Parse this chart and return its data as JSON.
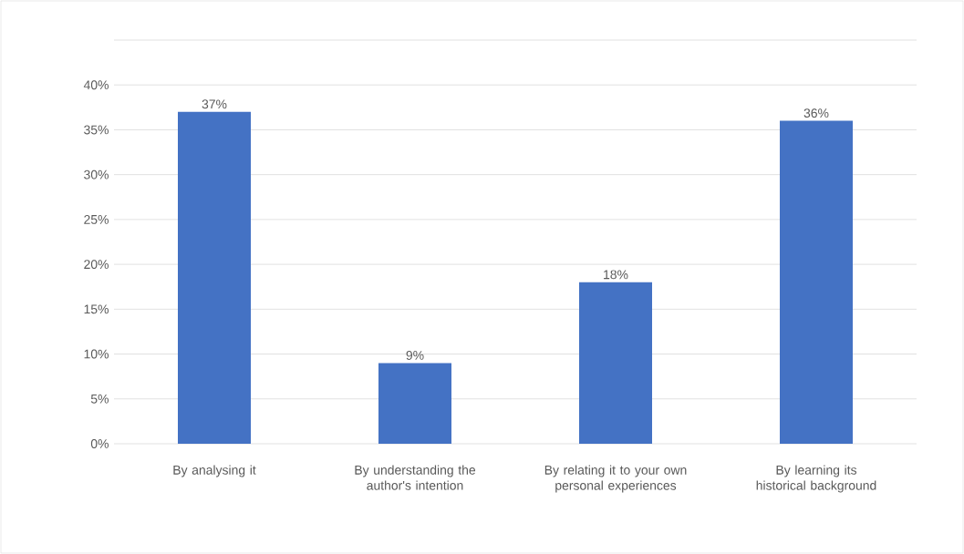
{
  "chart_data": {
    "type": "bar",
    "categories": [
      "By analysing it",
      "By understanding the author's intention",
      "By relating it to your own personal experiences",
      "By learning its historical background"
    ],
    "values": [
      37,
      9,
      18,
      36
    ],
    "value_labels": [
      "37%",
      "9%",
      "18%",
      "36%"
    ],
    "color": "#4472c4",
    "ylim": [
      0,
      45
    ],
    "yticks": [
      {
        "value": 0,
        "label": "0%"
      },
      {
        "value": 5,
        "label": "5%"
      },
      {
        "value": 10,
        "label": "10%"
      },
      {
        "value": 15,
        "label": "15%"
      },
      {
        "value": 20,
        "label": "20%"
      },
      {
        "value": 25,
        "label": "25%"
      },
      {
        "value": 30,
        "label": "30%"
      },
      {
        "value": 35,
        "label": "35%"
      },
      {
        "value": 40,
        "label": "40%"
      },
      {
        "value": 45,
        "label": null
      }
    ],
    "grid": "y"
  }
}
